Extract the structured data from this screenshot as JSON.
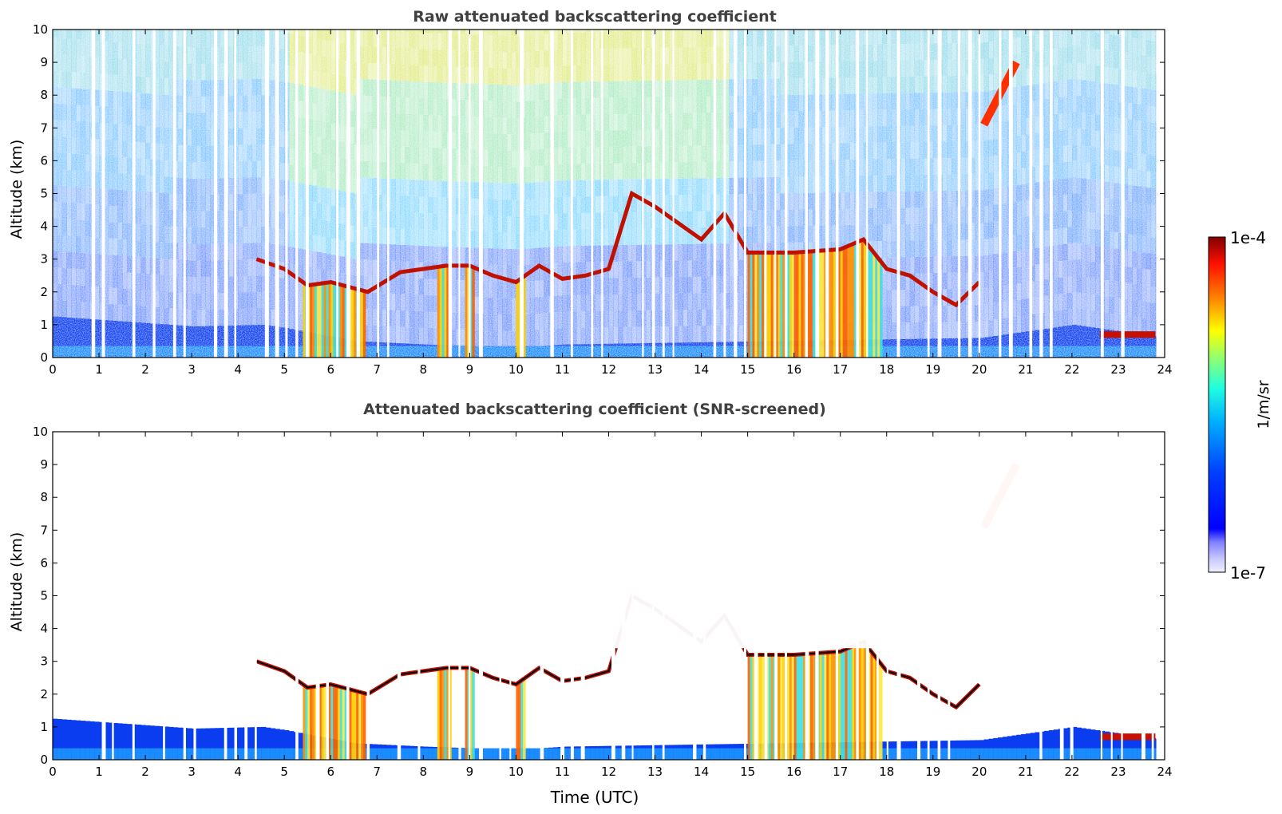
{
  "chart_data": [
    {
      "type": "heatmap",
      "title": "Raw attenuated backscattering coefficient",
      "xlabel": "",
      "ylabel": "Altitude (km)",
      "xlim": [
        0,
        24
      ],
      "ylim": [
        0,
        10
      ],
      "x_ticks": [
        0,
        1,
        2,
        3,
        4,
        5,
        6,
        7,
        8,
        9,
        10,
        11,
        12,
        13,
        14,
        15,
        16,
        17,
        18,
        19,
        20,
        21,
        22,
        23,
        24
      ],
      "y_ticks": [
        0,
        1,
        2,
        3,
        4,
        5,
        6,
        7,
        8,
        9,
        10
      ],
      "grid": false,
      "features": {
        "boundary_layer_top_km": [
          [
            0,
            1.25
          ],
          [
            3,
            0.95
          ],
          [
            4.5,
            1.0
          ],
          [
            5,
            0.9
          ],
          [
            6.5,
            0.5
          ],
          [
            8,
            0.4
          ],
          [
            10,
            0.3
          ],
          [
            11,
            0.4
          ],
          [
            20,
            0.6
          ],
          [
            22,
            1.0
          ],
          [
            24,
            0.6
          ]
        ],
        "cloud_layer_km": [
          [
            4.4,
            3.0
          ],
          [
            5.0,
            2.7
          ],
          [
            5.5,
            2.2
          ],
          [
            6.0,
            2.3
          ],
          [
            6.8,
            2.0
          ],
          [
            7.5,
            2.6
          ],
          [
            8.0,
            2.7
          ],
          [
            8.5,
            2.8
          ],
          [
            9.0,
            2.8
          ],
          [
            9.5,
            2.5
          ],
          [
            10.0,
            2.3
          ],
          [
            10.5,
            2.8
          ],
          [
            11.0,
            2.4
          ],
          [
            11.5,
            2.5
          ],
          [
            12.0,
            2.7
          ],
          [
            12.5,
            5.0
          ],
          [
            13.0,
            4.6
          ],
          [
            13.5,
            4.1
          ],
          [
            14.0,
            3.6
          ],
          [
            14.5,
            4.4
          ],
          [
            15.0,
            3.2
          ],
          [
            16.0,
            3.2
          ],
          [
            17.0,
            3.3
          ],
          [
            17.5,
            3.6
          ],
          [
            18.0,
            2.7
          ],
          [
            18.5,
            2.5
          ],
          [
            19.0,
            2.0
          ],
          [
            19.5,
            1.6
          ],
          [
            20.0,
            2.3
          ]
        ],
        "precipitation_shafts_utc": [
          [
            5.4,
            6.7
          ],
          [
            8.3,
            8.6
          ],
          [
            8.9,
            9.1
          ],
          [
            10.0,
            10.2
          ],
          [
            15.0,
            17.9
          ]
        ],
        "cirrus_patch": {
          "x": [
            20.1,
            20.8
          ],
          "altitude_km": [
            7.1,
            9.0
          ]
        },
        "low_cloud": {
          "x": [
            22.6,
            23.8
          ],
          "altitude_km": [
            0.6,
            0.8
          ]
        }
      }
    },
    {
      "type": "heatmap",
      "title": "Attenuated backscattering coefficient (SNR-screened)",
      "xlabel": "Time (UTC)",
      "ylabel": "Altitude (km)",
      "xlim": [
        0,
        24
      ],
      "ylim": [
        0,
        10
      ],
      "x_ticks": [
        0,
        1,
        2,
        3,
        4,
        5,
        6,
        7,
        8,
        9,
        10,
        11,
        12,
        13,
        14,
        15,
        16,
        17,
        18,
        19,
        20,
        21,
        22,
        23,
        24
      ],
      "y_ticks": [
        0,
        1,
        2,
        3,
        4,
        5,
        6,
        7,
        8,
        9,
        10
      ],
      "grid": false
    }
  ],
  "colorbar": {
    "label": "1/m/sr",
    "max_label": "1e-4",
    "min_label": "1e-7",
    "colormap": "jet",
    "colors": [
      "#e8e8ff",
      "#b0b0ff",
      "#0000ff",
      "#0060ff",
      "#00c8ff",
      "#40ffc0",
      "#c0ff40",
      "#ffe000",
      "#ff8000",
      "#ff2000",
      "#800000"
    ]
  }
}
